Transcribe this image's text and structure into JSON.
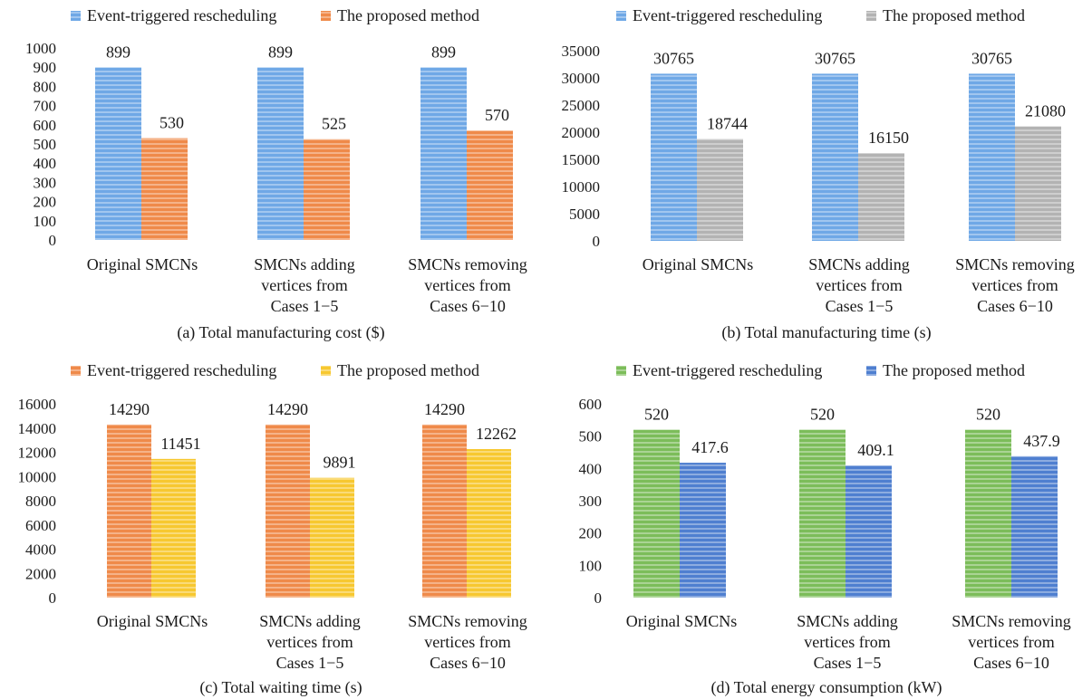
{
  "chart_data": [
    {
      "type": "bar",
      "caption": "(a) Total manufacturing cost ($)",
      "categories": [
        [
          "Original SMCNs"
        ],
        [
          "SMCNs adding",
          "vertices from",
          "Cases 1−5"
        ],
        [
          "SMCNs removing",
          "vertices from",
          "Cases 6−10"
        ]
      ],
      "series": [
        {
          "name": "Event-triggered rescheduling",
          "values": [
            899,
            899,
            899
          ],
          "labels": [
            "899",
            "899",
            "899"
          ],
          "color": "#6fa8e6"
        },
        {
          "name": "The proposed method",
          "values": [
            530,
            525,
            570
          ],
          "labels": [
            "530",
            "525",
            "570"
          ],
          "color": "#ef8a4a"
        }
      ],
      "ylim": [
        0,
        1000
      ],
      "yticks": [
        0,
        100,
        200,
        300,
        400,
        500,
        600,
        700,
        800,
        900,
        1000
      ],
      "ytick_labels": [
        "0",
        "100",
        "200",
        "300",
        "400",
        "500",
        "600",
        "700",
        "800",
        "900",
        "1000"
      ],
      "legend": "top-left",
      "grid": false
    },
    {
      "type": "bar",
      "caption": "(b) Total manufacturing time (s)",
      "categories": [
        [
          "Original SMCNs"
        ],
        [
          "SMCNs adding",
          "vertices from",
          "Cases 1−5"
        ],
        [
          "SMCNs removing",
          "vertices from",
          "Cases 6−10"
        ]
      ],
      "series": [
        {
          "name": "Event-triggered rescheduling",
          "values": [
            30765,
            30765,
            30765
          ],
          "labels": [
            "30765",
            "30765",
            "30765"
          ],
          "color": "#6fa8e6"
        },
        {
          "name": "The proposed method",
          "values": [
            18744,
            16150,
            21080
          ],
          "labels": [
            "18744",
            "16150",
            "21080"
          ],
          "color": "#b3b3b3"
        }
      ],
      "ylim": [
        0,
        35000
      ],
      "yticks": [
        0,
        5000,
        10000,
        15000,
        20000,
        25000,
        30000,
        35000
      ],
      "ytick_labels": [
        "0",
        "5000",
        "10000",
        "15000",
        "20000",
        "25000",
        "30000",
        "35000"
      ],
      "legend": "top-left",
      "grid": false
    },
    {
      "type": "bar",
      "caption": "(c) Total waiting time (s)",
      "categories": [
        [
          "Original SMCNs"
        ],
        [
          "SMCNs adding",
          "vertices from",
          "Cases 1−5"
        ],
        [
          "SMCNs removing",
          "vertices from",
          "Cases 6−10"
        ]
      ],
      "series": [
        {
          "name": "Event-triggered rescheduling",
          "values": [
            14290,
            14290,
            14290
          ],
          "labels": [
            "14290",
            "14290",
            "14290"
          ],
          "color": "#ef8a4a"
        },
        {
          "name": "The proposed method",
          "values": [
            11451,
            9891,
            12262
          ],
          "labels": [
            "11451",
            "9891",
            "12262"
          ],
          "color": "#f7c830"
        }
      ],
      "ylim": [
        0,
        16000
      ],
      "yticks": [
        0,
        2000,
        4000,
        6000,
        8000,
        10000,
        12000,
        14000,
        16000
      ],
      "ytick_labels": [
        "0",
        "2000",
        "4000",
        "6000",
        "8000",
        "10000",
        "12000",
        "14000",
        "16000"
      ],
      "legend": "top-left",
      "grid": false
    },
    {
      "type": "bar",
      "caption": "(d) Total energy consumption (kW)",
      "categories": [
        [
          "Original SMCNs"
        ],
        [
          "SMCNs adding",
          "vertices from",
          "Cases 1−5"
        ],
        [
          "SMCNs removing",
          "vertices from",
          "Cases 6−10"
        ]
      ],
      "series": [
        {
          "name": "Event-triggered rescheduling",
          "values": [
            520,
            520,
            520
          ],
          "labels": [
            "520",
            "520",
            "520"
          ],
          "color": "#7cbd5a"
        },
        {
          "name": "The proposed method",
          "values": [
            417.6,
            409.1,
            437.9
          ],
          "labels": [
            "417.6",
            "409.1",
            "437.9"
          ],
          "color": "#4f7fd0"
        }
      ],
      "ylim": [
        0,
        600
      ],
      "yticks": [
        0,
        100,
        200,
        300,
        400,
        500,
        600
      ],
      "ytick_labels": [
        "0",
        "100",
        "200",
        "300",
        "400",
        "500",
        "600"
      ],
      "legend": "top-left",
      "grid": false
    }
  ]
}
